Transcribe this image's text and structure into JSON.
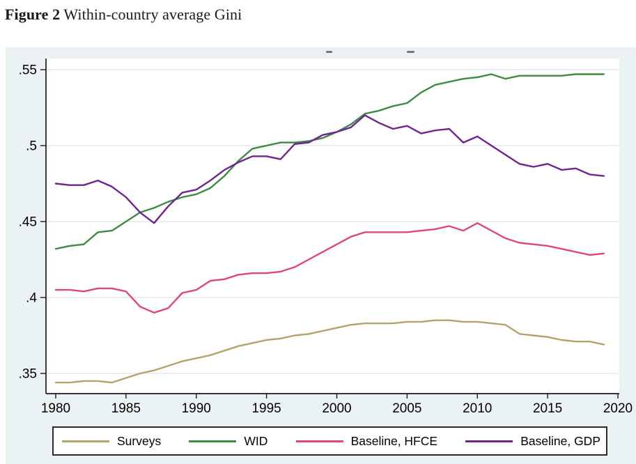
{
  "caption": {
    "label": "Figure 2",
    "text": " Within-country average Gini"
  },
  "chart_data": {
    "type": "line",
    "title_cropped": true,
    "x": [
      1980,
      1981,
      1982,
      1983,
      1984,
      1985,
      1986,
      1987,
      1988,
      1989,
      1990,
      1991,
      1992,
      1993,
      1994,
      1995,
      1996,
      1997,
      1998,
      1999,
      2000,
      2001,
      2002,
      2003,
      2004,
      2005,
      2006,
      2007,
      2008,
      2009,
      2010,
      2011,
      2012,
      2013,
      2014,
      2015,
      2016,
      2017,
      2018,
      2019
    ],
    "series": [
      {
        "name": "Surveys",
        "color": "#b2a36e",
        "values": [
          0.344,
          0.344,
          0.345,
          0.345,
          0.344,
          0.347,
          0.35,
          0.352,
          0.355,
          0.358,
          0.36,
          0.362,
          0.365,
          0.368,
          0.37,
          0.372,
          0.373,
          0.375,
          0.376,
          0.378,
          0.38,
          0.382,
          0.383,
          0.383,
          0.383,
          0.384,
          0.384,
          0.385,
          0.385,
          0.384,
          0.384,
          0.383,
          0.382,
          0.376,
          0.375,
          0.374,
          0.372,
          0.371,
          0.371,
          0.369
        ]
      },
      {
        "name": "WID",
        "color": "#3d8b41",
        "values": [
          0.432,
          0.434,
          0.435,
          0.443,
          0.444,
          0.45,
          0.456,
          0.459,
          0.463,
          0.466,
          0.468,
          0.472,
          0.48,
          0.49,
          0.498,
          0.5,
          0.502,
          0.502,
          0.503,
          0.505,
          0.509,
          0.514,
          0.521,
          0.523,
          0.526,
          0.528,
          0.535,
          0.54,
          0.542,
          0.544,
          0.545,
          0.547,
          0.544,
          0.546,
          0.546,
          0.546,
          0.546,
          0.547,
          0.547,
          0.547
        ]
      },
      {
        "name": "Baseline, HFCE",
        "color": "#e0457e",
        "values": [
          0.405,
          0.405,
          0.404,
          0.406,
          0.406,
          0.404,
          0.394,
          0.39,
          0.393,
          0.403,
          0.405,
          0.411,
          0.412,
          0.415,
          0.416,
          0.416,
          0.417,
          0.42,
          0.425,
          0.43,
          0.435,
          0.44,
          0.443,
          0.443,
          0.443,
          0.443,
          0.444,
          0.445,
          0.447,
          0.444,
          0.449,
          0.444,
          0.439,
          0.436,
          0.435,
          0.434,
          0.432,
          0.43,
          0.428,
          0.429
        ]
      },
      {
        "name": "Baseline, GDP",
        "color": "#6e2590",
        "values": [
          0.475,
          0.474,
          0.474,
          0.477,
          0.473,
          0.466,
          0.456,
          0.449,
          0.46,
          0.469,
          0.471,
          0.477,
          0.484,
          0.489,
          0.493,
          0.493,
          0.491,
          0.501,
          0.502,
          0.507,
          0.509,
          0.512,
          0.52,
          0.515,
          0.511,
          0.513,
          0.508,
          0.51,
          0.511,
          0.502,
          0.506,
          0.5,
          0.494,
          0.488,
          0.486,
          0.488,
          0.484,
          0.485,
          0.481,
          0.48
        ]
      }
    ],
    "xlabel": "",
    "ylabel": "",
    "xlim": [
      1980,
      2020
    ],
    "ylim": [
      0.34,
      0.555
    ],
    "xticks": [
      "1980",
      "1985",
      "1990",
      "1995",
      "2000",
      "2005",
      "2010",
      "2015",
      "2020"
    ],
    "xtick_values": [
      1980,
      1985,
      1990,
      1995,
      2000,
      2005,
      2010,
      2015,
      2020
    ],
    "yticks": [
      ".35",
      ".4",
      ".45",
      ".5",
      ".55"
    ],
    "ytick_values": [
      0.35,
      0.4,
      0.45,
      0.5,
      0.55
    ],
    "grid": "horizontal",
    "legend_position": "bottom-box"
  },
  "colors": {
    "chart_background": "#eaf2f3",
    "plot_background": "#ffffff",
    "gridline": "#e3e9ea",
    "axis": "#1a1a1a",
    "tick_text": "#000000"
  }
}
